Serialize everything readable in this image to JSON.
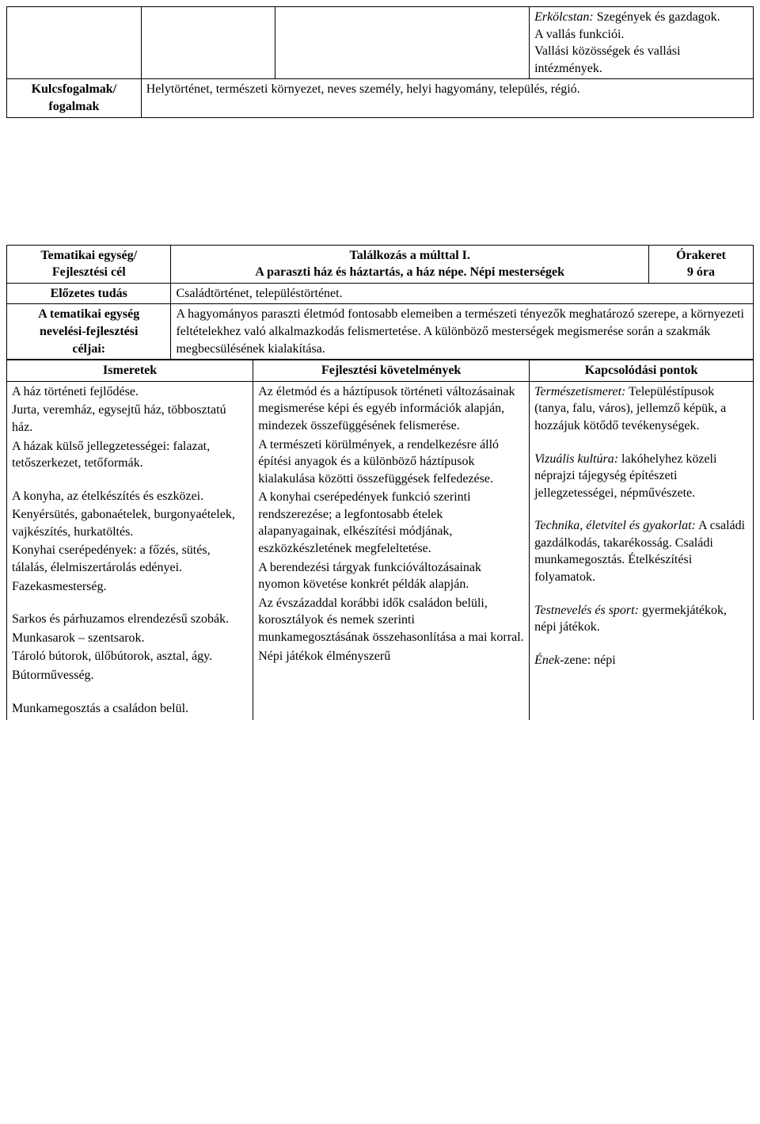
{
  "table1": {
    "col3_lines": [
      {
        "text": "Erkölcstan: ",
        "italic": true
      },
      {
        "text": "Szegények és gazdagok.",
        "italic": false
      },
      {
        "text": "A vallás funkciói.",
        "italic": false
      },
      {
        "text": "Vallási közösségek és vallási intézmények.",
        "italic": false
      }
    ],
    "row2_label": "Kulcsfogalmak/ fogalmak",
    "row2_value": "Helytörténet, természeti környezet, neves személy, helyi hagyomány, település, régió."
  },
  "table2": {
    "r1c1_line1": "Tematikai egység/",
    "r1c1_line2": "Fejlesztési cél",
    "r1c2_line1": "Találkozás a múlttal I.",
    "r1c2_line2": "A paraszti ház és háztartás, a ház népe. Népi mesterségek",
    "r1c3_line1": "Órakeret",
    "r1c3_line2": "9 óra",
    "r2c1": "Előzetes tudás",
    "r2c2": "Családtörténet, településtörténet.",
    "r3c1_line1": "A tematikai egység",
    "r3c1_line2": "nevelési-fejlesztési",
    "r3c1_line3": "céljai",
    "r3c2": "A hagyományos paraszti életmód fontosabb elemeiben a természeti tényezők meghatározó szerepe, a környezeti feltételekhez való alkalmazkodás felismertetése. A különböző mesterségek megismerése során a szakmák megbecsülésének kialakítása.",
    "hdr1": "Ismeretek",
    "hdr2": "Fejlesztési követelmények",
    "hdr3": "Kapcsolódási pontok",
    "ismeretek_paras": [
      "A ház történeti fejlődése.",
      "Jurta, veremház, egysejtű ház, többosztatú ház.",
      "A házak külső jellegzetességei: falazat, tetőszerkezet, tetőformák.",
      "",
      "A konyha, az ételkészítés és eszközei.",
      "Kenyérsütés, gabonaételek, burgonyaételek, vajkészítés, hurkatöltés.",
      "Konyhai cserépedények: a főzés, sütés, tálalás, élelmiszertárolás edényei.",
      "Fazekasmesterség.",
      "",
      "Sarkos és párhuzamos elrendezésű szobák.",
      "Munkasarok – szentsarok.",
      "Tároló bútorok, ülőbútorok, asztal, ágy.",
      "Bútorművesség.",
      "",
      "Munkamegosztás a családon belül."
    ],
    "fejl_paras": [
      "Az életmód és a háztípusok történeti változásainak megismerése képi és egyéb információk alapján, mindezek összefüggésének felismerése.",
      "A természeti körülmények, a rendelkezésre álló építési anyagok és a különböző háztípusok kialakulása közötti összefüggések felfedezése.",
      "A konyhai cserépedények funkció szerinti rendszerezése; a legfontosabb ételek alapanyagainak, elkészítési módjának, eszközkészletének megfeleltetése.",
      "A berendezési tárgyak funkcióváltozásainak nyomon követése konkrét példák alapján.",
      "Az évszázaddal korábbi idők családon belüli, korosztályok és nemek szerinti munkamegosztásának összehasonlítása a mai korral.",
      "Népi játékok élményszerű"
    ],
    "kapcs_segments": [
      {
        "runs": [
          {
            "t": "Természetismeret:",
            "i": true
          },
          {
            "t": " Településtípusok (tanya, falu, város), jellemző képük, a hozzájuk kötődő tevékenységek.",
            "i": false
          }
        ]
      },
      {
        "runs": []
      },
      {
        "runs": [
          {
            "t": "Vizuális kultúra:",
            "i": true
          },
          {
            "t": " lakóhelyhez közeli néprajzi tájegység építészeti jellegzetességei, népművészete.",
            "i": false
          }
        ]
      },
      {
        "runs": []
      },
      {
        "runs": [
          {
            "t": "Technika, életvitel és gyakorlat:",
            "i": true
          },
          {
            "t": " A családi gazdálkodás, takarékosság. Családi munkamegosztás. Ételkészítési folyamatok.",
            "i": false
          }
        ]
      },
      {
        "runs": []
      },
      {
        "runs": [
          {
            "t": "Testnevelés és sport:",
            "i": true
          },
          {
            "t": " gyermekjátékok, népi játékok.",
            "i": false
          }
        ]
      },
      {
        "runs": []
      },
      {
        "runs": [
          {
            "t": "Ének-",
            "i": true
          },
          {
            "t": "zene: népi",
            "i": false
          }
        ]
      }
    ]
  },
  "layout": {
    "table1_col_widths": [
      "18%",
      "18%",
      "34%",
      "30%"
    ],
    "table2_top_col_widths": [
      "22%",
      "64%",
      "14%"
    ],
    "table2_bottom_col_widths": [
      "33%",
      "37%",
      "30%"
    ]
  }
}
